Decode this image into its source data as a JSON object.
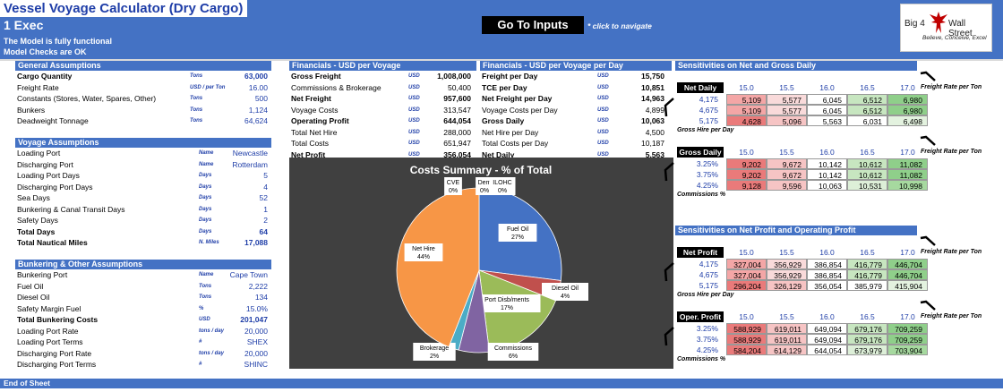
{
  "header": {
    "title": "Vessel Voyage Calculator (Dry Cargo)",
    "sheet_name": "1 Exec",
    "note_functional": "The Model is fully functional",
    "note_checks": "Model Checks are OK",
    "goto_button": "Go To Inputs",
    "goto_hint": "* click to navigate",
    "logo_left": "Big 4",
    "logo_right": "Wall Street",
    "logo_tagline": "Believe, Conceive, Excel",
    "logo_icon": "eagle-icon"
  },
  "general": {
    "title": "General Assumptions",
    "rows": [
      {
        "label": "Cargo Quantity",
        "unit": "Tons",
        "value": "63,000",
        "bold": true
      },
      {
        "label": "Freight Rate",
        "unit": "USD / per Ton",
        "value": "16.00",
        "bold": false
      },
      {
        "label": "Constants (Stores, Water, Spares, Other)",
        "unit": "Tons",
        "value": "500",
        "bold": false
      },
      {
        "label": "Bunkers",
        "unit": "Tons",
        "value": "1,124",
        "bold": false
      },
      {
        "label": "Deadweight Tonnage",
        "unit": "Tons",
        "value": "64,624",
        "bold": false
      }
    ]
  },
  "voyage": {
    "title": "Voyage Assumptions",
    "rows": [
      {
        "label": "Loading Port",
        "unit": "Name",
        "value": "Newcastle",
        "bold": false
      },
      {
        "label": "Discharging Port",
        "unit": "Name",
        "value": "Rotterdam",
        "bold": false
      },
      {
        "label": "Loading Port Days",
        "unit": "Days",
        "value": "5",
        "bold": false
      },
      {
        "label": "Discharging Port Days",
        "unit": "Days",
        "value": "4",
        "bold": false
      },
      {
        "label": "Sea Days",
        "unit": "Days",
        "value": "52",
        "bold": false
      },
      {
        "label": "Bunkering & Canal Transit Days",
        "unit": "Days",
        "value": "1",
        "bold": false
      },
      {
        "label": "Safety Days",
        "unit": "Days",
        "value": "2",
        "bold": false
      },
      {
        "label": "Total Days",
        "unit": "Days",
        "value": "64",
        "bold": true
      },
      {
        "label": "Total Nautical Miles",
        "unit": "N. Miles",
        "value": "17,088",
        "bold": true
      }
    ]
  },
  "bunkering": {
    "title": "Bunkering & Other Assumptions",
    "rows": [
      {
        "label": "Bunkering Port",
        "unit": "Name",
        "value": "Cape Town",
        "bold": false
      },
      {
        "label": "Fuel Oil",
        "unit": "Tons",
        "value": "2,222",
        "bold": false
      },
      {
        "label": "Diesel Oil",
        "unit": "Tons",
        "value": "134",
        "bold": false
      },
      {
        "label": "Safety Margin Fuel",
        "unit": "%",
        "value": "15.0%",
        "bold": false
      },
      {
        "label": "Total Bunkering Costs",
        "unit": "USD",
        "value": "201,047",
        "bold": true
      },
      {
        "label": "Loading Port Rate",
        "unit": "tons / day",
        "value": "20,000",
        "bold": false
      },
      {
        "label": "Loading Port Terms",
        "unit": "#",
        "value": "SHEX",
        "bold": false
      },
      {
        "label": "Discharging Port Rate",
        "unit": "tons / day",
        "value": "20,000",
        "bold": false
      },
      {
        "label": "Discharging Port Terms",
        "unit": "#",
        "value": "SHINC",
        "bold": false
      }
    ]
  },
  "fin_voyage": {
    "title": "Financials - USD per Voyage",
    "rows": [
      {
        "label": "Gross Freight",
        "unit": "USD",
        "value": "1,008,000",
        "bold": true
      },
      {
        "label": "Commissions & Brokerage",
        "unit": "USD",
        "value": "50,400",
        "bold": false
      },
      {
        "label": "Net Freight",
        "unit": "USD",
        "value": "957,600",
        "bold": true
      },
      {
        "label": "Voyage Costs",
        "unit": "USD",
        "value": "313,547",
        "bold": false
      },
      {
        "label": "Operating Profit",
        "unit": "USD",
        "value": "644,054",
        "bold": true
      },
      {
        "label": "Total Net Hire",
        "unit": "USD",
        "value": "288,000",
        "bold": false
      },
      {
        "label": "Total Costs",
        "unit": "USD",
        "value": "651,947",
        "bold": false
      },
      {
        "label": "Net Profit",
        "unit": "USD",
        "value": "356,054",
        "bold": true
      }
    ]
  },
  "fin_day": {
    "title": "Financials - USD per Voyage per Day",
    "rows": [
      {
        "label": "Freight per Day",
        "unit": "USD",
        "value": "15,750",
        "bold": true
      },
      {
        "label": "TCE per Day",
        "unit": "USD",
        "value": "10,851",
        "bold": true
      },
      {
        "label": "Net Freight per Day",
        "unit": "USD",
        "value": "14,963",
        "bold": true
      },
      {
        "label": "Voyage Costs per Day",
        "unit": "USD",
        "value": "4,899",
        "bold": false
      },
      {
        "label": "Gross Daily",
        "unit": "USD",
        "value": "10,063",
        "bold": true
      },
      {
        "label": "Net Hire per Day",
        "unit": "USD",
        "value": "4,500",
        "bold": false
      },
      {
        "label": "Total Costs per Day",
        "unit": "USD",
        "value": "10,187",
        "bold": false
      },
      {
        "label": "Net Daily",
        "unit": "USD",
        "value": "5,563",
        "bold": true
      }
    ]
  },
  "sens_daily_title": "Sensitivities on Net and Gross Daily",
  "sens_profit_title": "Sensitivities on Net Profit and Operating Profit",
  "sens_tables": [
    {
      "corner": "Net Daily",
      "cols": [
        "15.0",
        "15.5",
        "16.0",
        "16.5",
        "17.0"
      ],
      "rows": [
        "4,175",
        "4,675",
        "5,175"
      ],
      "cells": [
        [
          "5,109",
          "5,577",
          "6,045",
          "6,512",
          "6,980"
        ],
        [
          "5,109",
          "5,577",
          "6,045",
          "6,512",
          "6,980"
        ],
        [
          "4,628",
          "5,096",
          "5,563",
          "6,031",
          "6,498"
        ]
      ],
      "colors": [
        [
          "#f4a6a6",
          "#f9dada",
          "#ffffff",
          "#c7e6c0",
          "#8fcf8a"
        ],
        [
          "#f4a6a6",
          "#f9dada",
          "#ffffff",
          "#c7e6c0",
          "#8fcf8a"
        ],
        [
          "#ea7a7a",
          "#f6c4c4",
          "#ffffff",
          "#ffffff",
          "#e3f2df"
        ]
      ],
      "col_axis": "Freight Rate per Ton",
      "row_axis": "Gross Hire per Day"
    },
    {
      "corner": "Gross Daily",
      "cols": [
        "15.0",
        "15.5",
        "16.0",
        "16.5",
        "17.0"
      ],
      "rows": [
        "3.25%",
        "3.75%",
        "4.25%"
      ],
      "cells": [
        [
          "9,202",
          "9,672",
          "10,142",
          "10,612",
          "11,082"
        ],
        [
          "9,202",
          "9,672",
          "10,142",
          "10,612",
          "11,082"
        ],
        [
          "9,128",
          "9,596",
          "10,063",
          "10,531",
          "10,998"
        ]
      ],
      "colors": [
        [
          "#ea7a7a",
          "#f6c4c4",
          "#ffffff",
          "#c7e6c0",
          "#8fcf8a"
        ],
        [
          "#ea7a7a",
          "#f6c4c4",
          "#ffffff",
          "#c7e6c0",
          "#8fcf8a"
        ],
        [
          "#ea7a7a",
          "#f6c4c4",
          "#ffffff",
          "#ddefd8",
          "#a6d99f"
        ]
      ],
      "col_axis": "Freight Rate per Ton",
      "row_axis": "Commissions %"
    },
    {
      "corner": "Net Profit",
      "cols": [
        "15.0",
        "15.5",
        "16.0",
        "16.5",
        "17.0"
      ],
      "rows": [
        "4,175",
        "4,675",
        "5,175"
      ],
      "cells": [
        [
          "327,004",
          "356,929",
          "386,854",
          "416,779",
          "446,704"
        ],
        [
          "327,004",
          "356,929",
          "386,854",
          "416,779",
          "446,704"
        ],
        [
          "296,204",
          "326,129",
          "356,054",
          "385,979",
          "415,904"
        ]
      ],
      "colors": [
        [
          "#f4a6a6",
          "#f9dada",
          "#ffffff",
          "#c7e6c0",
          "#8fcf8a"
        ],
        [
          "#f4a6a6",
          "#f9dada",
          "#ffffff",
          "#c7e6c0",
          "#8fcf8a"
        ],
        [
          "#ea7a7a",
          "#f6c4c4",
          "#ffffff",
          "#ffffff",
          "#e3f2df"
        ]
      ],
      "col_axis": "Freight Rate per Ton",
      "row_axis": "Gross Hire per Day"
    },
    {
      "corner": "Oper. Profit",
      "cols": [
        "15.0",
        "15.5",
        "16.0",
        "16.5",
        "17.0"
      ],
      "rows": [
        "3.25%",
        "3.75%",
        "4.25%"
      ],
      "cells": [
        [
          "588,929",
          "619,011",
          "649,094",
          "679,176",
          "709,259"
        ],
        [
          "588,929",
          "619,011",
          "649,094",
          "679,176",
          "709,259"
        ],
        [
          "584,204",
          "614,129",
          "644,054",
          "673,979",
          "703,904"
        ]
      ],
      "colors": [
        [
          "#ea7a7a",
          "#f6c4c4",
          "#ffffff",
          "#c7e6c0",
          "#8fcf8a"
        ],
        [
          "#ea7a7a",
          "#f6c4c4",
          "#ffffff",
          "#c7e6c0",
          "#8fcf8a"
        ],
        [
          "#ea7a7a",
          "#f6c4c4",
          "#ffffff",
          "#ddefd8",
          "#a6d99f"
        ]
      ],
      "col_axis": "Freight Rate per Ton",
      "row_axis": "Commissions %"
    }
  ],
  "chart_data": {
    "type": "pie",
    "title": "Costs Summary - % of Total",
    "slices": [
      {
        "label": "Fuel Oil",
        "value": 27,
        "pct": "27%",
        "color": "#4472c4"
      },
      {
        "label": "Diesel Oil",
        "value": 4,
        "pct": "4%",
        "color": "#c0504d"
      },
      {
        "label": "Port Disb/ments",
        "value": 17,
        "pct": "17%",
        "color": "#9bbb59"
      },
      {
        "label": "Commissions",
        "value": 6,
        "pct": "6%",
        "color": "#8064a2"
      },
      {
        "label": "Brokerage",
        "value": 2,
        "pct": "2%",
        "color": "#4bacc6"
      },
      {
        "label": "Net Hire",
        "value": 44,
        "pct": "44%",
        "color": "#f79646"
      },
      {
        "label": "CVE",
        "value": 0,
        "pct": "0%",
        "color": "#2c4d75"
      },
      {
        "label": "Dem",
        "value": 0,
        "pct": "0%",
        "color": "#772c2a"
      },
      {
        "label": "ILOHC",
        "value": 0,
        "pct": "0%",
        "color": "#5f7530"
      }
    ]
  },
  "footer": {
    "label": "End of Sheet"
  }
}
